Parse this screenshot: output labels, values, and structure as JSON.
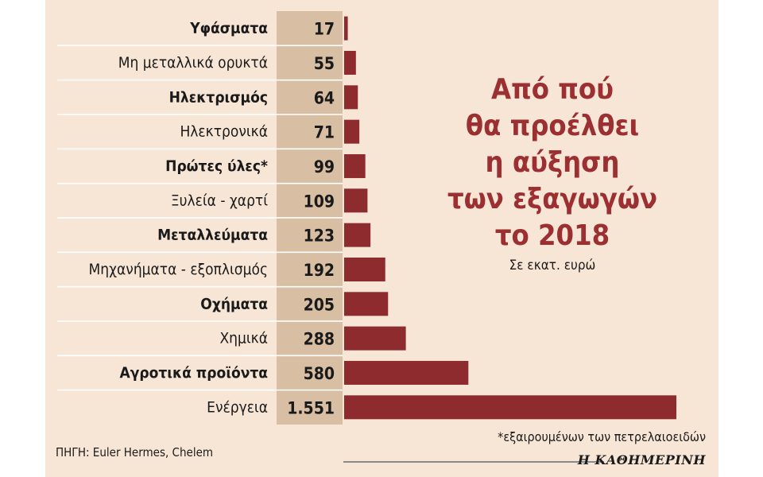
{
  "chart_data": {
    "type": "bar",
    "orientation": "horizontal",
    "title": "Από πού\nθα προέλθει\nη αύξηση\nτων εξαγωγών\nτο 2018",
    "subtitle": "Σε εκατ. ευρώ",
    "categories": [
      "Υφάσματα",
      "Μη μεταλλικά ορυκτά",
      "Ηλεκτρισμός",
      "Ηλεκτρονικά",
      "Πρώτες ύλες*",
      "Ξυλεία - χαρτί",
      "Μεταλλεύματα",
      "Μηχανήματα - εξοπλισμός",
      "Οχήματα",
      "Χημικά",
      "Αγροτικά προϊόντα",
      "Ενέργεια"
    ],
    "bold_rows": [
      true,
      false,
      true,
      false,
      true,
      false,
      true,
      false,
      true,
      false,
      true,
      false
    ],
    "values": [
      17,
      55,
      64,
      71,
      99,
      109,
      123,
      192,
      205,
      288,
      580,
      1551
    ],
    "value_labels": [
      "17",
      "55",
      "64",
      "71",
      "99",
      "109",
      "123",
      "192",
      "205",
      "288",
      "580",
      "1.551"
    ],
    "bar_color": "#8e2b2e",
    "value_column_color": "#d8bea2",
    "background_color": "#f7e6d6",
    "title_color": "#9b2f32",
    "xlim": [
      0,
      1551
    ],
    "grid": false,
    "legend": "none"
  },
  "footnote": "*εξαιρουμένων των πετρελαιοειδών",
  "source": "ΠΗΓΗ: Euler Hermes, Chelem",
  "brand": "Η ΚΑΘΗΜΕΡΙΝΗ"
}
